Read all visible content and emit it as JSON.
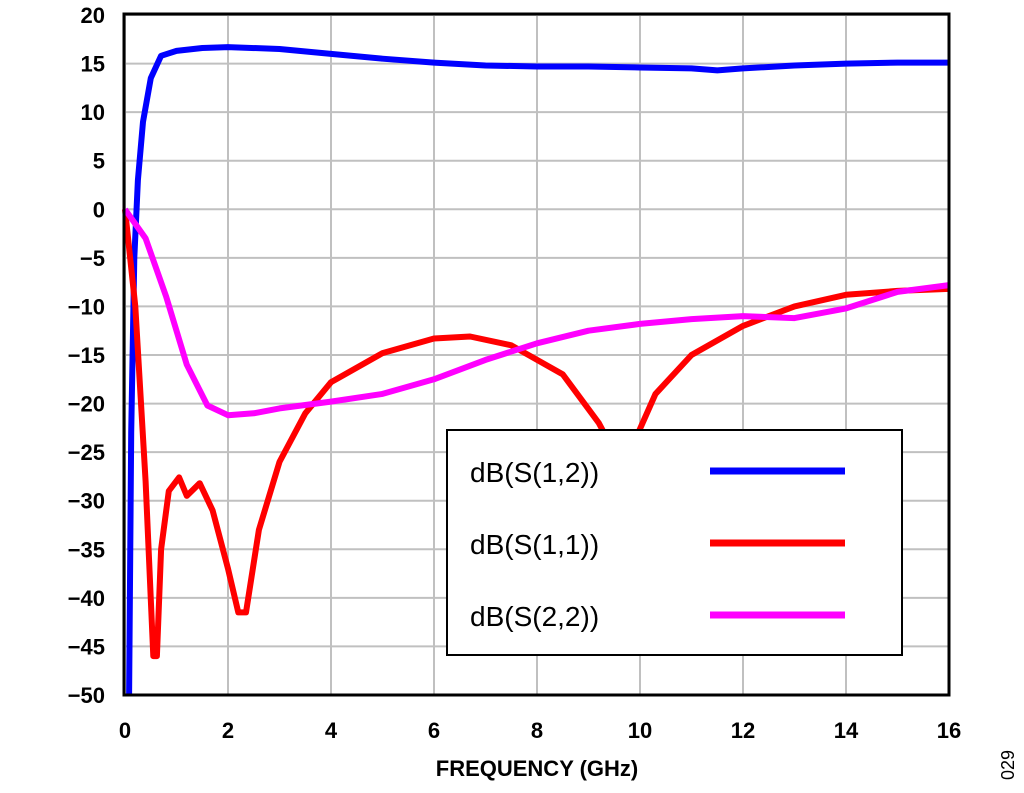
{
  "chart_data": {
    "type": "line",
    "title": "",
    "xlabel": "FREQUENCY (GHz)",
    "ylabel": "",
    "xlim": [
      0,
      16
    ],
    "ylim": [
      -50,
      20
    ],
    "xticks": [
      0,
      2,
      4,
      6,
      8,
      10,
      12,
      14,
      16
    ],
    "yticks": [
      20,
      15,
      10,
      5,
      0,
      -5,
      -10,
      -15,
      -20,
      -25,
      -30,
      -35,
      -40,
      -45,
      -50
    ],
    "ytick_labels": [
      "20",
      "15",
      "10",
      "5",
      "0",
      "−5",
      "−10",
      "−15",
      "−20",
      "−25",
      "−30",
      "−35",
      "−40",
      "−45",
      "−50"
    ],
    "grid": true,
    "legend_position": "lower-right",
    "footnote": "029",
    "series": [
      {
        "name": "dB(S(1,2))",
        "color": "#0000ff",
        "x": [
          0.08,
          0.12,
          0.18,
          0.25,
          0.35,
          0.5,
          0.7,
          1,
          1.5,
          2,
          3,
          4,
          5,
          6,
          7,
          8,
          9,
          10,
          11,
          11.5,
          12,
          13,
          14,
          15,
          16
        ],
        "y": [
          -50,
          -23,
          -5,
          3,
          9,
          13.5,
          15.8,
          16.3,
          16.6,
          16.7,
          16.5,
          16,
          15.5,
          15.1,
          14.8,
          14.7,
          14.7,
          14.6,
          14.5,
          14.3,
          14.5,
          14.8,
          15,
          15.1,
          15.1
        ]
      },
      {
        "name": "dB(S(1,1))",
        "color": "#ff0000",
        "x": [
          0,
          0.2,
          0.4,
          0.55,
          0.62,
          0.7,
          0.85,
          1.05,
          1.2,
          1.45,
          1.7,
          2,
          2.2,
          2.35,
          2.6,
          3,
          3.5,
          4,
          5,
          6,
          6.7,
          7.5,
          8.5,
          9.2,
          9.6,
          9.8,
          10.3,
          11,
          12,
          13,
          14,
          15,
          16
        ],
        "y": [
          0,
          -10,
          -28,
          -46,
          -46,
          -35,
          -29,
          -27.6,
          -29.5,
          -28.2,
          -31,
          -37,
          -41.5,
          -41.5,
          -33,
          -26,
          -21,
          -17.8,
          -14.8,
          -13.3,
          -13.1,
          -14,
          -17,
          -22,
          -26,
          -25,
          -19,
          -15,
          -12,
          -10,
          -8.8,
          -8.4,
          -8.2
        ]
      },
      {
        "name": "dB(S(2,2))",
        "color": "#ff00ff",
        "x": [
          0,
          0.4,
          0.8,
          1.2,
          1.6,
          2,
          2.5,
          3,
          4,
          5,
          6,
          7,
          8,
          9,
          10,
          11,
          12,
          13,
          14,
          15,
          16
        ],
        "y": [
          0,
          -3,
          -9,
          -16,
          -20.2,
          -21.2,
          -21,
          -20.5,
          -19.8,
          -19,
          -17.5,
          -15.5,
          -13.8,
          -12.5,
          -11.8,
          -11.3,
          -11,
          -11.2,
          -10.2,
          -8.5,
          -7.8
        ]
      }
    ]
  }
}
